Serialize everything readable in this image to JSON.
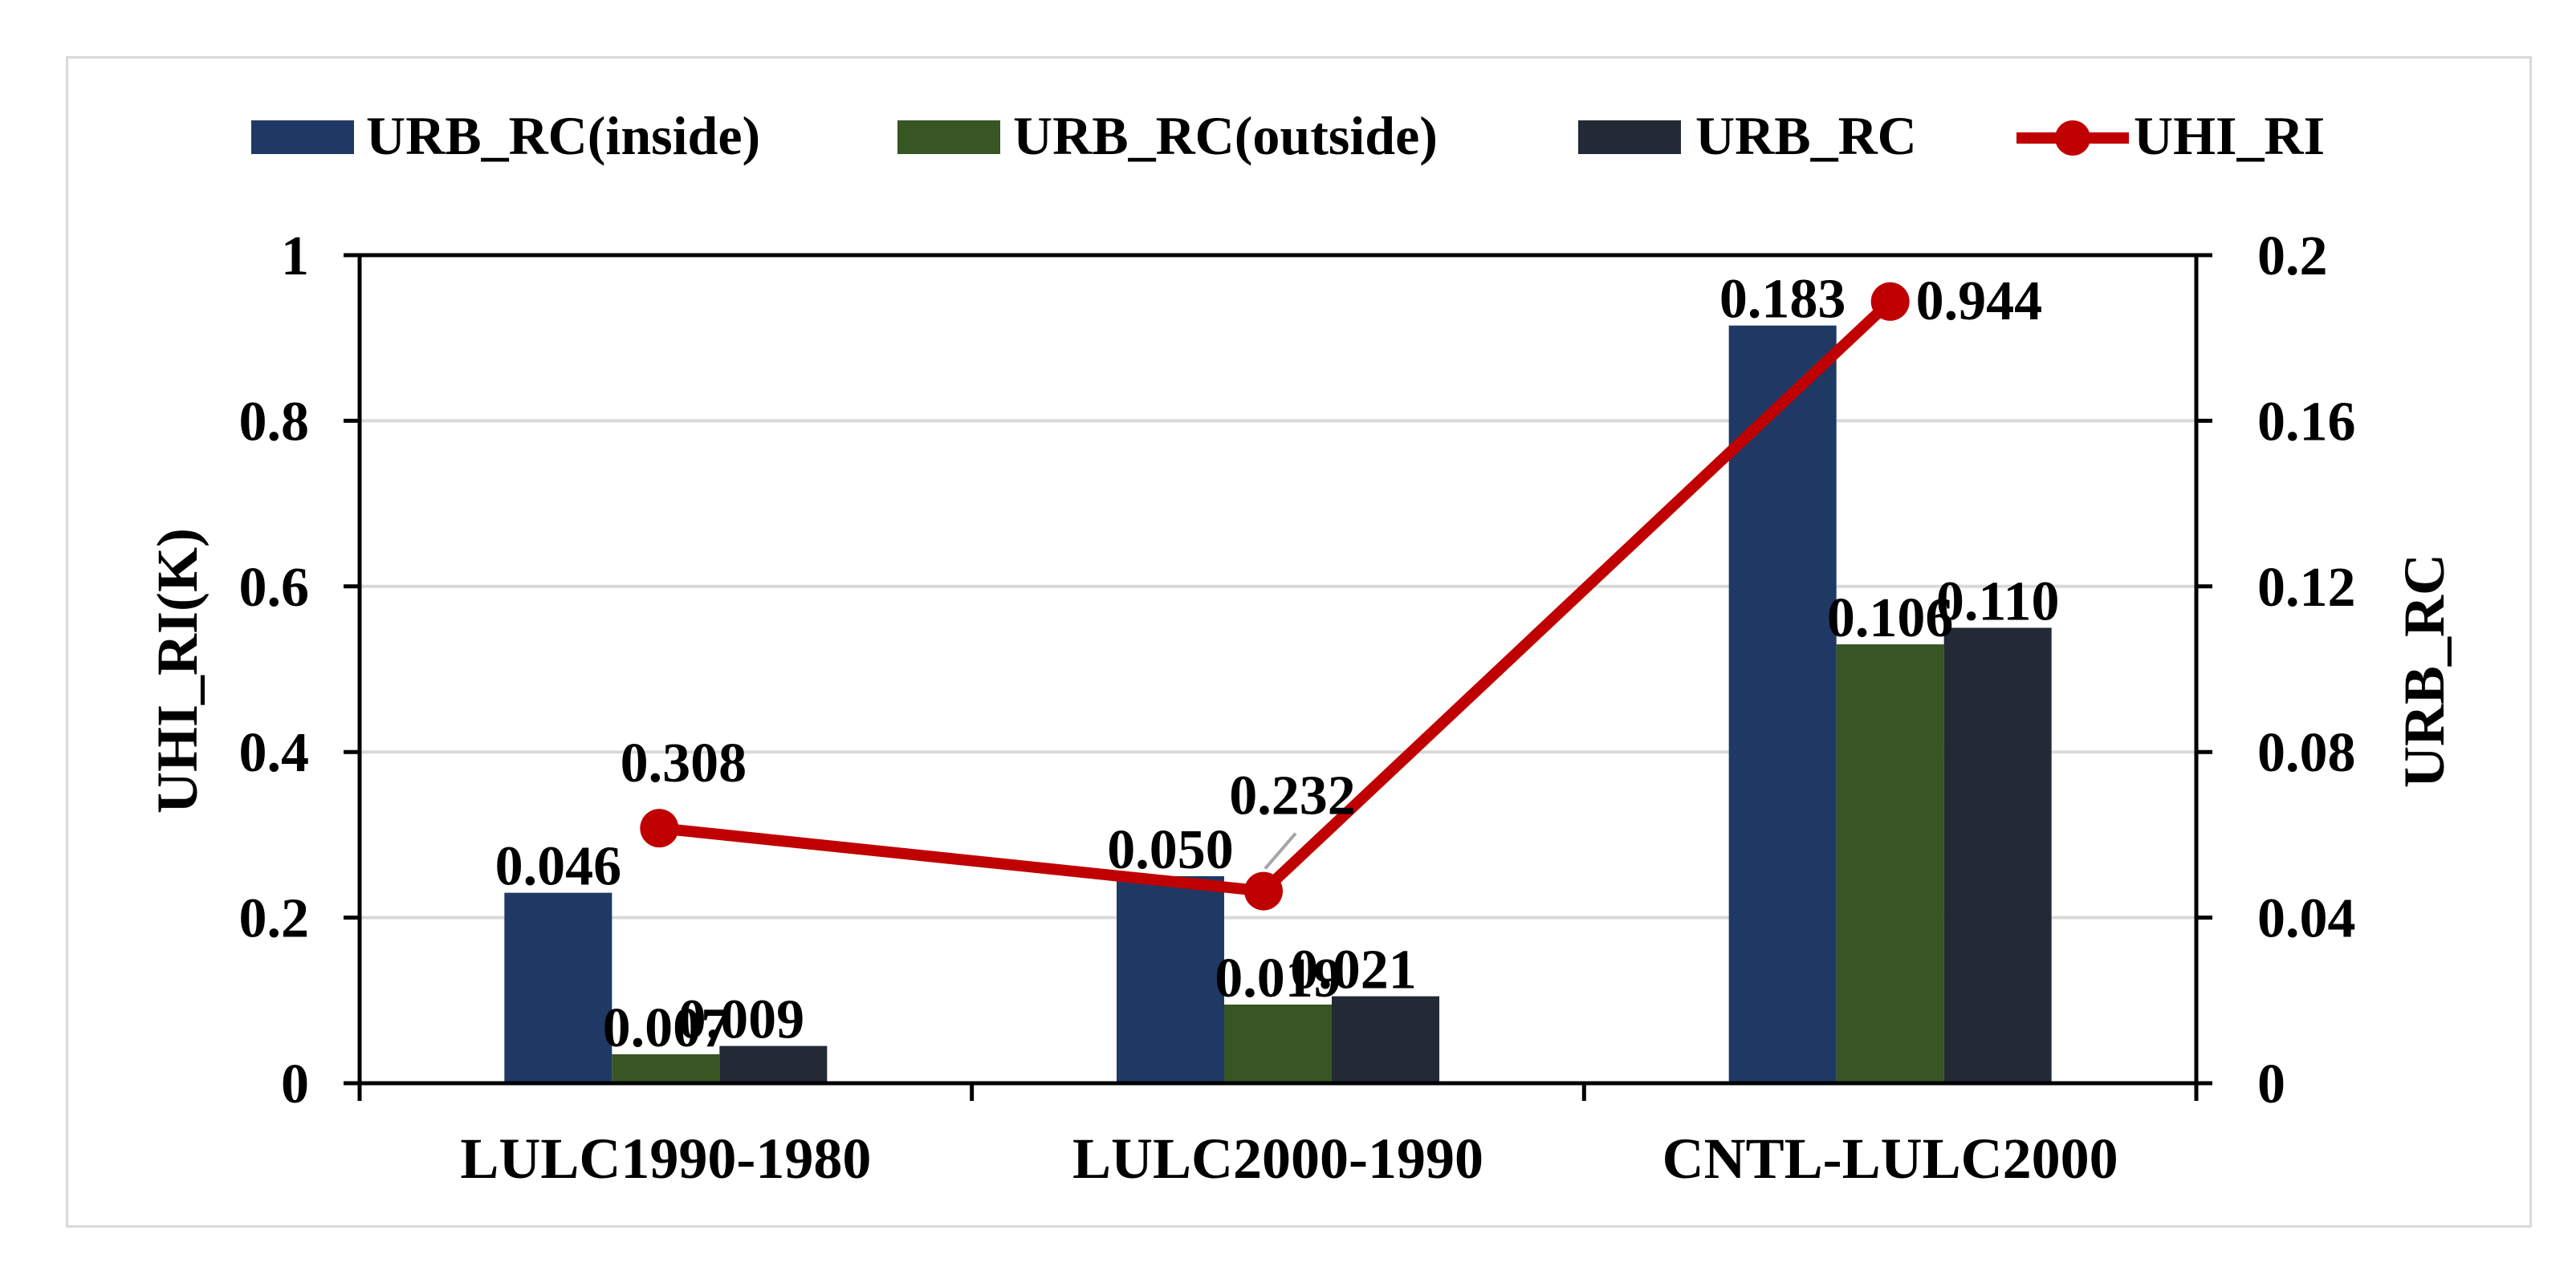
{
  "chart_data": {
    "type": "bar",
    "categories": [
      "LULC1990-1980",
      "LULC2000-1990",
      "CNTL-LULC2000"
    ],
    "series": [
      {
        "name": "URB_RC(inside)",
        "axis": "right",
        "color": "#203864",
        "values": [
          0.046,
          0.05,
          0.183
        ],
        "labels": [
          "0.046",
          "0.050",
          "0.183"
        ]
      },
      {
        "name": "URB_RC(outside)",
        "axis": "right",
        "color": "#375623",
        "values": [
          0.007,
          0.019,
          0.106
        ],
        "labels": [
          "0.007",
          "0.019",
          "0.106"
        ]
      },
      {
        "name": "URB_RC",
        "axis": "right",
        "color": "#222a35",
        "values": [
          0.009,
          0.021,
          0.11
        ],
        "labels": [
          "0.009",
          "0.021",
          "0.110"
        ]
      }
    ],
    "line_series": {
      "name": "UHI_RI",
      "axis": "left",
      "type": "line",
      "color": "#c00000",
      "values": [
        0.308,
        0.232,
        0.944
      ],
      "labels": [
        "0.308",
        "0.232",
        "0.944"
      ]
    },
    "left_axis": {
      "label": "UHI_RI(K)",
      "ylim": [
        0,
        1
      ],
      "ticks": [
        0,
        0.2,
        0.4,
        0.6,
        0.8,
        1
      ],
      "tick_labels": [
        "0",
        "0.2",
        "0.4",
        "0.6",
        "0.8",
        "1"
      ]
    },
    "right_axis": {
      "label": "URB_RC",
      "ylim": [
        0,
        0.2
      ],
      "ticks": [
        0,
        0.04,
        0.08,
        0.12,
        0.16,
        0.2
      ],
      "tick_labels": [
        "0",
        "0.04",
        "0.08",
        "0.12",
        "0.16",
        "0.2"
      ]
    },
    "legend_placement": "top-center",
    "grid": true
  }
}
